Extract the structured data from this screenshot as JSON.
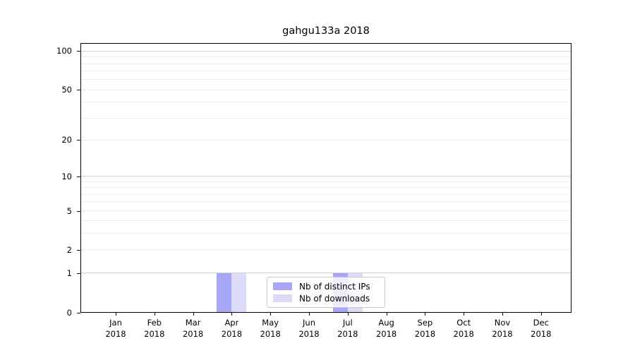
{
  "title": "gahgu133a 2018",
  "chart_data": {
    "type": "bar",
    "title": "gahgu133a 2018",
    "categories": [
      "Jan 2018",
      "Feb 2018",
      "Mar 2018",
      "Apr 2018",
      "May 2018",
      "Jun 2018",
      "Jul 2018",
      "Aug 2018",
      "Sep 2018",
      "Oct 2018",
      "Nov 2018",
      "Dec 2018"
    ],
    "series": [
      {
        "name": "Nb of distinct IPs",
        "color": "#a7a7f5",
        "values": [
          0,
          0,
          0,
          1,
          0,
          0,
          1,
          0,
          0,
          0,
          0,
          0
        ]
      },
      {
        "name": "Nb of downloads",
        "color": "#dbdbf8",
        "values": [
          0,
          0,
          0,
          1,
          0,
          0,
          1,
          0,
          0,
          0,
          0,
          0
        ]
      }
    ],
    "xlabel": "",
    "ylabel": "",
    "yscale": "log1p",
    "ylim": [
      0,
      115
    ],
    "yticks": [
      0,
      1,
      2,
      5,
      10,
      20,
      50,
      100
    ],
    "grid_major": [
      1,
      10,
      100
    ],
    "grid_minor": [
      2,
      3,
      4,
      5,
      6,
      7,
      8,
      9,
      20,
      30,
      40,
      50,
      60,
      70,
      80,
      90
    ],
    "grid": "horizontal",
    "legend_position": "lower center"
  },
  "legend": {
    "items": [
      {
        "label": "Nb of distinct IPs",
        "color": "#a7a7f5"
      },
      {
        "label": "Nb of downloads",
        "color": "#dbdbf8"
      }
    ]
  }
}
